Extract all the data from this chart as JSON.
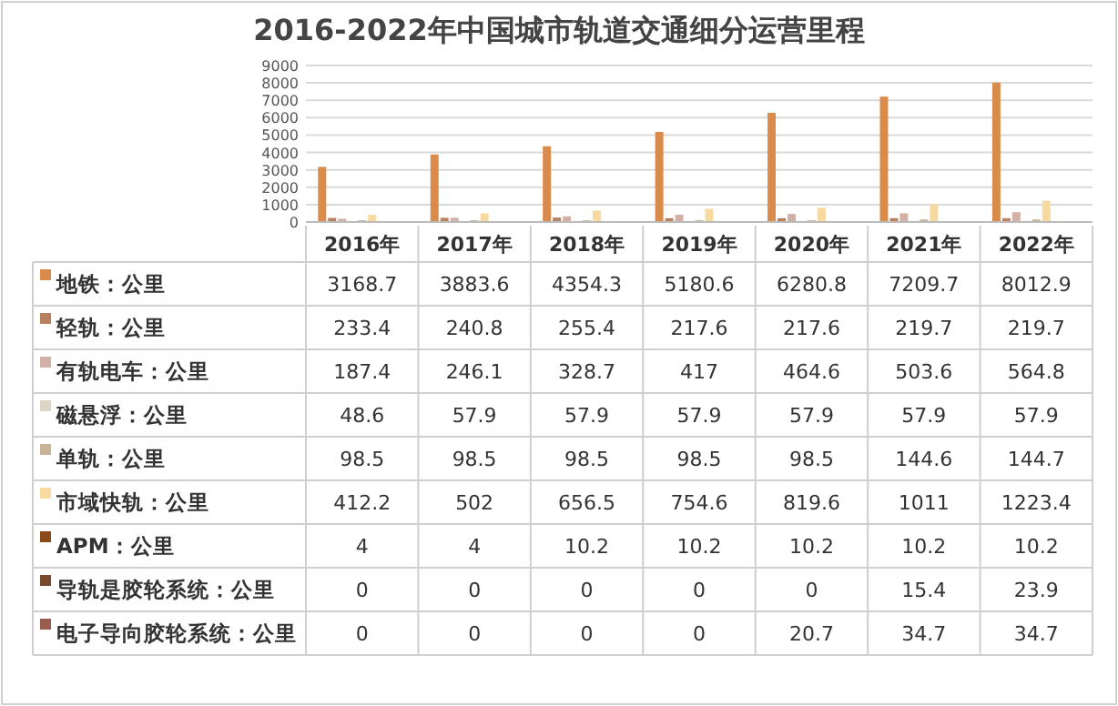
{
  "chart_data": {
    "type": "bar",
    "title": "2016-2022年中国城市轨道交通细分运营里程",
    "categories": [
      "2016年",
      "2017年",
      "2018年",
      "2019年",
      "2020年",
      "2021年",
      "2022年"
    ],
    "series": [
      {
        "name": "地铁：公里",
        "color": "#d98b4c",
        "values": [
          3168.7,
          3883.6,
          4354.3,
          5180.6,
          6280.8,
          7209.7,
          8012.9
        ]
      },
      {
        "name": "轻轨：公里",
        "color": "#b8805e",
        "values": [
          233.4,
          240.8,
          255.4,
          217.6,
          217.6,
          219.7,
          219.7
        ]
      },
      {
        "name": "有轨电车：公里",
        "color": "#d2b0a6",
        "values": [
          187.4,
          246.1,
          328.7,
          417,
          464.6,
          503.6,
          564.8
        ]
      },
      {
        "name": "磁悬浮：公里",
        "color": "#ddd4c6",
        "values": [
          48.6,
          57.9,
          57.9,
          57.9,
          57.9,
          57.9,
          57.9
        ]
      },
      {
        "name": "单轨：公里",
        "color": "#c9b49a",
        "values": [
          98.5,
          98.5,
          98.5,
          98.5,
          98.5,
          144.6,
          144.7
        ]
      },
      {
        "name": "市域快轨：公里",
        "color": "#f8d9a0",
        "values": [
          412.2,
          502,
          656.5,
          754.6,
          819.6,
          1011,
          1223.4
        ]
      },
      {
        "name": "APM：公里",
        "color": "#8b4a1c",
        "values": [
          4,
          4,
          10.2,
          10.2,
          10.2,
          10.2,
          10.2
        ]
      },
      {
        "name": "导轨是胶轮系统：公里",
        "color": "#7a4a2c",
        "values": [
          0,
          0,
          0,
          0,
          0,
          15.4,
          23.9
        ]
      },
      {
        "name": "电子导向胶轮系统：公里",
        "color": "#9a5c4c",
        "values": [
          0,
          0,
          0,
          0,
          20.7,
          34.7,
          34.7
        ]
      }
    ],
    "ylim": [
      0,
      9000
    ],
    "yticks": [
      0,
      1000,
      2000,
      3000,
      4000,
      5000,
      6000,
      7000,
      8000,
      9000
    ],
    "grid": "y",
    "legend": "left",
    "data_labels": true
  }
}
